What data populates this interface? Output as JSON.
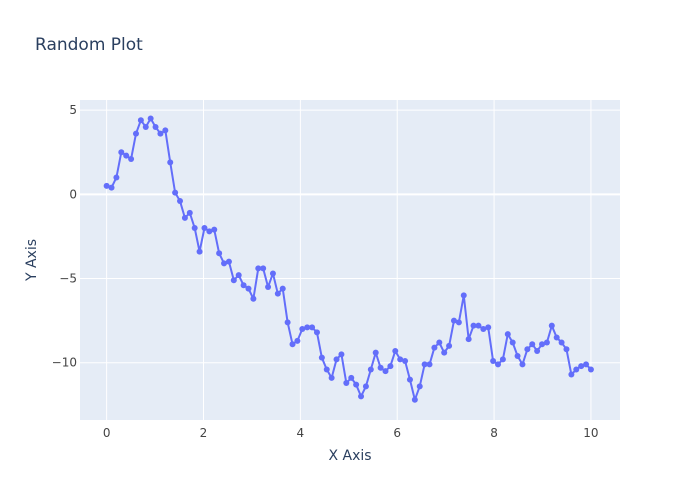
{
  "chart_data": {
    "type": "line",
    "mode": "lines+markers",
    "title": "Random Plot",
    "xlabel": "X Axis",
    "ylabel": "Y Axis",
    "xlim": [
      -0.55,
      10.6
    ],
    "ylim": [
      -13.4,
      5.6
    ],
    "xticks": [
      0,
      2,
      4,
      6,
      8,
      10
    ],
    "yticks": [
      5,
      0,
      -5,
      -10
    ],
    "grid": true,
    "legend": "none",
    "colors": {
      "paper": "#ffffff",
      "plot_bg": "#e5ecf6",
      "grid": "#ffffff",
      "zero_line": "#ffffff",
      "line": "#636efa",
      "text": "#2a3f5f",
      "tick_text": "#444444"
    },
    "series": [
      {
        "x": [
          0.0,
          0.101,
          0.202,
          0.303,
          0.404,
          0.505,
          0.606,
          0.707,
          0.808,
          0.909,
          1.01,
          1.111,
          1.212,
          1.313,
          1.414,
          1.515,
          1.616,
          1.717,
          1.818,
          1.919,
          2.02,
          2.121,
          2.222,
          2.323,
          2.424,
          2.525,
          2.626,
          2.727,
          2.828,
          2.929,
          3.03,
          3.131,
          3.232,
          3.333,
          3.434,
          3.535,
          3.636,
          3.737,
          3.838,
          3.939,
          4.04,
          4.141,
          4.242,
          4.343,
          4.444,
          4.545,
          4.646,
          4.747,
          4.848,
          4.949,
          5.051,
          5.152,
          5.253,
          5.354,
          5.455,
          5.556,
          5.657,
          5.758,
          5.859,
          5.96,
          6.061,
          6.162,
          6.263,
          6.364,
          6.465,
          6.566,
          6.667,
          6.768,
          6.869,
          6.97,
          7.071,
          7.172,
          7.273,
          7.374,
          7.475,
          7.576,
          7.677,
          7.778,
          7.879,
          7.98,
          8.081,
          8.182,
          8.283,
          8.384,
          8.485,
          8.586,
          8.687,
          8.788,
          8.889,
          8.99,
          9.091,
          9.192,
          9.293,
          9.394,
          9.495,
          9.596,
          9.697,
          9.798,
          9.899,
          10.0
        ],
        "values": [
          0.5,
          0.4,
          1.0,
          2.5,
          2.3,
          2.1,
          3.6,
          4.4,
          4.0,
          4.5,
          4.0,
          3.6,
          3.8,
          1.9,
          0.1,
          -0.4,
          -1.4,
          -1.1,
          -2.0,
          -3.4,
          -2.0,
          -2.2,
          -2.1,
          -3.5,
          -4.1,
          -4.0,
          -5.1,
          -4.8,
          -5.4,
          -5.6,
          -6.2,
          -4.4,
          -4.4,
          -5.5,
          -4.7,
          -5.9,
          -5.6,
          -7.6,
          -8.9,
          -8.7,
          -8.0,
          -7.9,
          -7.9,
          -8.2,
          -9.7,
          -10.4,
          -10.9,
          -9.8,
          -9.5,
          -11.2,
          -10.9,
          -11.3,
          -12.0,
          -11.4,
          -10.4,
          -9.4,
          -10.3,
          -10.5,
          -10.2,
          -9.3,
          -9.8,
          -9.9,
          -11.0,
          -12.2,
          -11.4,
          -10.1,
          -10.1,
          -9.1,
          -8.8,
          -9.4,
          -9.0,
          -7.5,
          -7.6,
          -6.0,
          -8.6,
          -7.8,
          -7.8,
          -8.0,
          -7.9,
          -9.9,
          -10.1,
          -9.8,
          -8.3,
          -8.8,
          -9.6,
          -10.1,
          -9.2,
          -8.9,
          -9.3,
          -8.9,
          -8.8,
          -7.8,
          -8.5,
          -8.8,
          -9.2,
          -10.7,
          -10.4,
          -10.2,
          -10.1,
          -10.4
        ]
      }
    ]
  }
}
